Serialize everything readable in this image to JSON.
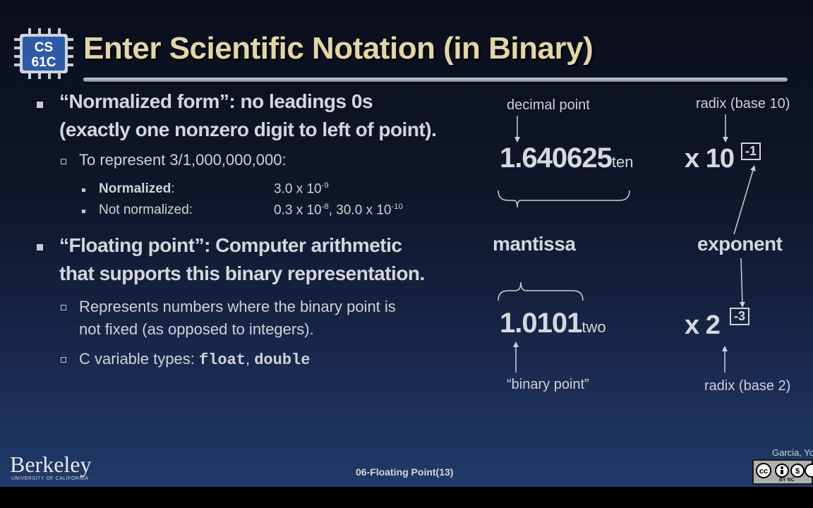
{
  "logo": {
    "line1": "CS",
    "line2": "61C"
  },
  "title": "Enter Scientific Notation (in Binary)",
  "bullets": {
    "normalized_line1": "“Normalized form”: no leadings 0s",
    "normalized_line2": "(exactly one nonzero digit to left of point).",
    "represent": "To represent 3/1,000,000,000:",
    "normalized_label": "Normalized",
    "normalized_colon": ":",
    "normalized_mantissa": "3.0 x 10",
    "normalized_exp": "-9",
    "not_normalized_label": "Not normalized:",
    "not_norm_a": "0.3 x 10",
    "not_norm_a_exp": "-8",
    "not_norm_sep": ", 30.0 x 10",
    "not_norm_b_exp": "-10",
    "fp_line1": "“Floating point”: Computer arithmetic",
    "fp_line2": "that supports this binary representation.",
    "rep_line1": "Represents numbers where the binary point is",
    "rep_line2": "not fixed (as opposed to integers).",
    "ctypes_prefix": "C variable types: ",
    "ctype_float": "float",
    "ctype_sep": ", ",
    "ctype_double": "double"
  },
  "diagram": {
    "decimal_point_label": "decimal point",
    "radix10_label": "radix (base 10)",
    "dec_number": "1.640625",
    "dec_sub": "ten",
    "x10": "x 10",
    "exp10": "-1",
    "mantissa": "mantissa",
    "exponent": "exponent",
    "bin_number": "1.0101",
    "bin_sub": "two",
    "x2": "x 2",
    "exp2": "-3",
    "binary_point_label": "“binary point”",
    "radix2_label": "radix (base 2)"
  },
  "footer": {
    "berkeley": "Berkeley",
    "berkeley_sub": "UNIVERSITY OF CALIFORNIA",
    "center": "06-Floating Point(13)",
    "author": "Garcia, Yo",
    "cc": "BY  NC"
  },
  "colors": {
    "title": "#e2d6a8",
    "text": "#d3d6de",
    "logo_bg": "#2f5aa8"
  }
}
